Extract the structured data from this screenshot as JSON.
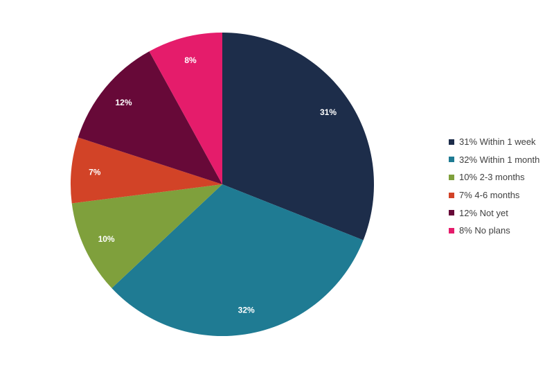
{
  "chart_data": {
    "type": "pie",
    "categories": [
      "Within 1 week",
      "Within 1 month",
      "2-3 months",
      "4-6 months",
      "Not yet",
      "No plans"
    ],
    "values": [
      31,
      32,
      10,
      7,
      12,
      8
    ],
    "data_labels": [
      "31%",
      "32%",
      "10%",
      "7%",
      "12%",
      "8%"
    ],
    "legend_entries": [
      "31% Within 1 week",
      "32% Within 1 month",
      "10% 2-3 months",
      "7% 4-6 months",
      "12% Not yet",
      "8% No plans"
    ],
    "colors": [
      "#1d2d4a",
      "#1f7b93",
      "#7fa03c",
      "#d24327",
      "#670938",
      "#e51c6b"
    ],
    "legend_position": "right",
    "start_angle": "12 o'clock",
    "direction": "clockwise"
  }
}
